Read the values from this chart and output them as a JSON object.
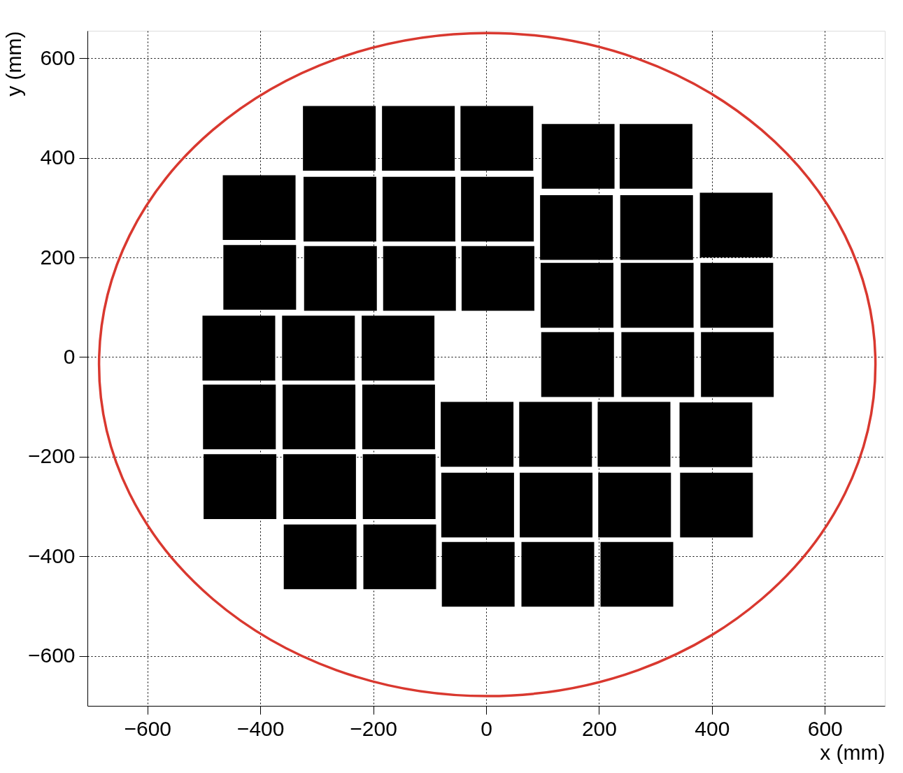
{
  "chart_data": {
    "type": "bar",
    "xlabel": "x (mm)",
    "ylabel": "y (mm)",
    "xlim": [
      -700,
      700
    ],
    "ylim": [
      -700,
      655
    ],
    "xticks": [
      -600,
      -400,
      -200,
      0,
      200,
      400,
      600
    ],
    "yticks": [
      -600,
      -400,
      -200,
      0,
      200,
      400,
      600
    ],
    "grid": true,
    "series": [
      {
        "color": "#000000",
        "x": [
          -438,
          -437,
          -436,
          -402,
          -401,
          -297,
          -296,
          -295,
          -294,
          -260,
          -259,
          -258,
          -156,
          -155,
          -154,
          -153,
          -120,
          -119,
          -118,
          -16,
          -15,
          -14,
          19,
          20,
          21,
          123,
          124,
          127,
          160,
          161,
          162,
          163,
          262,
          263,
          267,
          301,
          302,
          303,
          304,
          407,
          408,
          443,
          444,
          445
        ],
        "base": [
          -47,
          -185,
          -325,
          235,
          95,
          -47,
          -185,
          -325,
          -466,
          374,
          232,
          93,
          -47,
          -185,
          -325,
          -466,
          374,
          232,
          93,
          -220,
          -362,
          -501,
          374,
          232,
          93,
          -220,
          -362,
          -501,
          195,
          59,
          -80,
          338,
          -220,
          -362,
          -501,
          338,
          195,
          59,
          -80,
          -221,
          -362,
          200,
          59,
          -80
        ],
        "values": [
          130,
          130,
          130,
          130,
          130,
          130,
          130,
          130,
          130,
          130,
          130,
          130,
          130,
          130,
          130,
          130,
          130,
          130,
          130,
          130,
          130,
          130,
          130,
          130,
          130,
          130,
          130,
          130,
          130,
          130,
          130,
          130,
          130,
          130,
          130,
          130,
          130,
          130,
          130,
          130,
          130,
          130,
          130,
          130
        ]
      }
    ]
  }
}
